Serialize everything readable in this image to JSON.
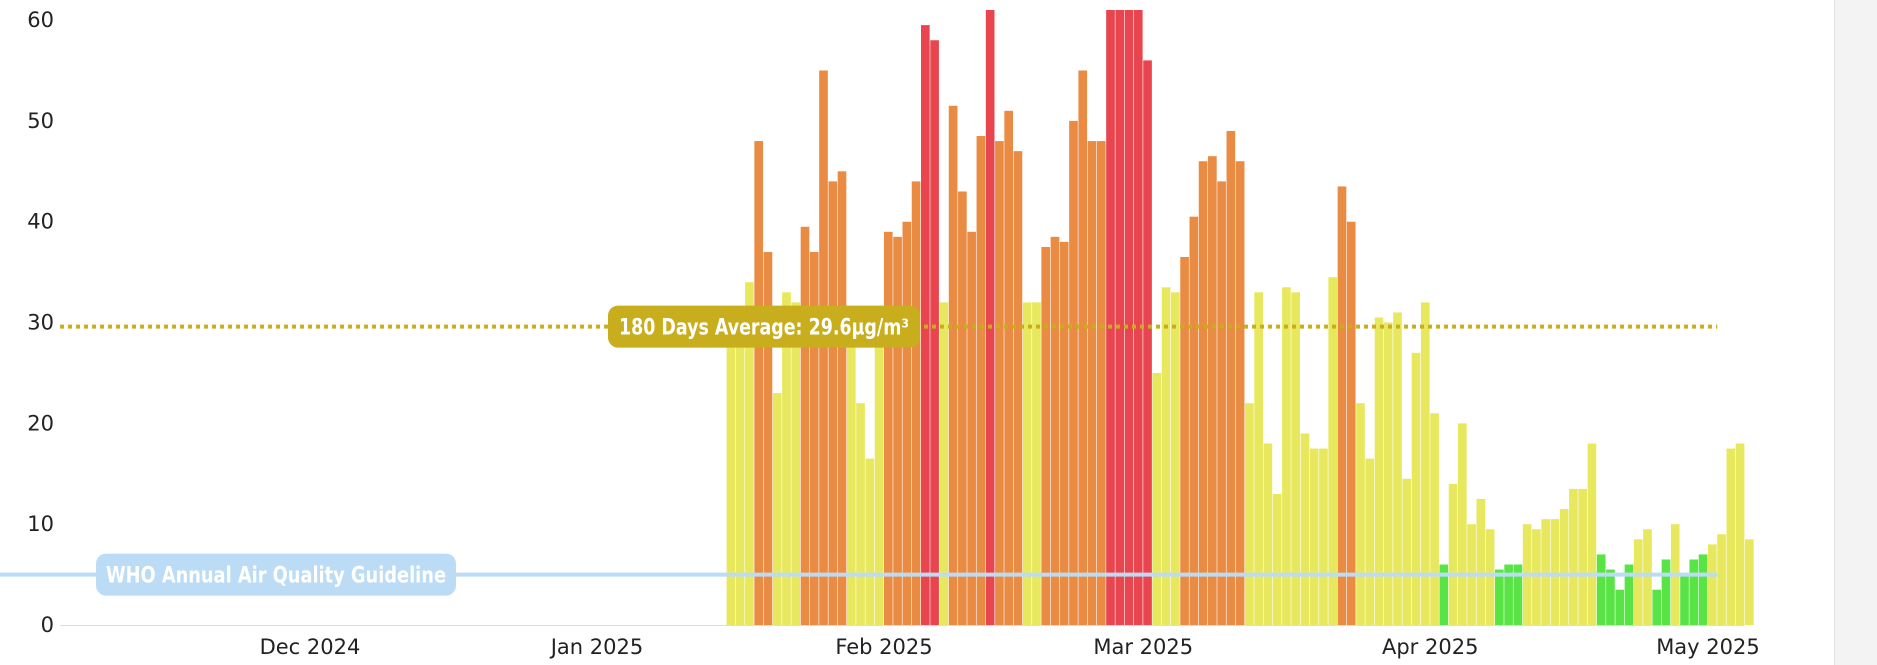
{
  "chart_data": {
    "type": "bar",
    "ylim": [
      0,
      61
    ],
    "yticks": [
      0,
      10,
      20,
      30,
      40,
      50,
      60
    ],
    "xticks": [
      {
        "label": "Dec 2024",
        "date": "2024-12-01"
      },
      {
        "label": "Jan 2025",
        "date": "2025-01-01"
      },
      {
        "label": "Feb 2025",
        "date": "2025-02-01"
      },
      {
        "label": "Mar 2025",
        "date": "2025-03-01"
      },
      {
        "label": "Apr 2025",
        "date": "2025-04-01"
      },
      {
        "label": "May 2025",
        "date": "2025-05-01"
      }
    ],
    "x_start": "2024-11-04",
    "x_end": "2025-05-05",
    "bar_dates_start": "2025-01-15",
    "bar_dates_end": "2025-05-01",
    "values": [
      30,
      30,
      34,
      48,
      37,
      23,
      33,
      32,
      39.5,
      37,
      55,
      44,
      45,
      28,
      22,
      16.5,
      30,
      39,
      38.5,
      40,
      44,
      59.5,
      58,
      32,
      51.5,
      43,
      39,
      48.5,
      61,
      48,
      51,
      47,
      32,
      32,
      37.5,
      38.5,
      38,
      50,
      55,
      48,
      48,
      61,
      61,
      61,
      61,
      56,
      25,
      33.5,
      33,
      36.5,
      40.5,
      46,
      46.5,
      44,
      49,
      46,
      22,
      33,
      18,
      13,
      33.5,
      33,
      19,
      17.5,
      17.5,
      34.5,
      43.5,
      40,
      22,
      16.5,
      30.5,
      30,
      31,
      14.5,
      27,
      32,
      21,
      6,
      14,
      20,
      10,
      12.5,
      9.5,
      5.5,
      6,
      6,
      10,
      9.5,
      10.5,
      10.5,
      11.5,
      13.5,
      13.5,
      18,
      7,
      5.5,
      3.5,
      6,
      8.5,
      9.5,
      3.5,
      6.5,
      10,
      5,
      6.5,
      7,
      8,
      9,
      17.5,
      18,
      8.5
    ],
    "colors": {
      "green": "#58e444",
      "yellow": "#e8e85e",
      "orange": "#e98b42",
      "red": "#e9454e"
    },
    "average_line": {
      "value": 29.6,
      "label": "180 Days Average: 29.6µg/m³",
      "color": "#c8ad1c"
    },
    "guideline_line": {
      "value": 5,
      "label": "WHO Annual Air Quality Guideline",
      "color": "#bcdcf5"
    }
  }
}
